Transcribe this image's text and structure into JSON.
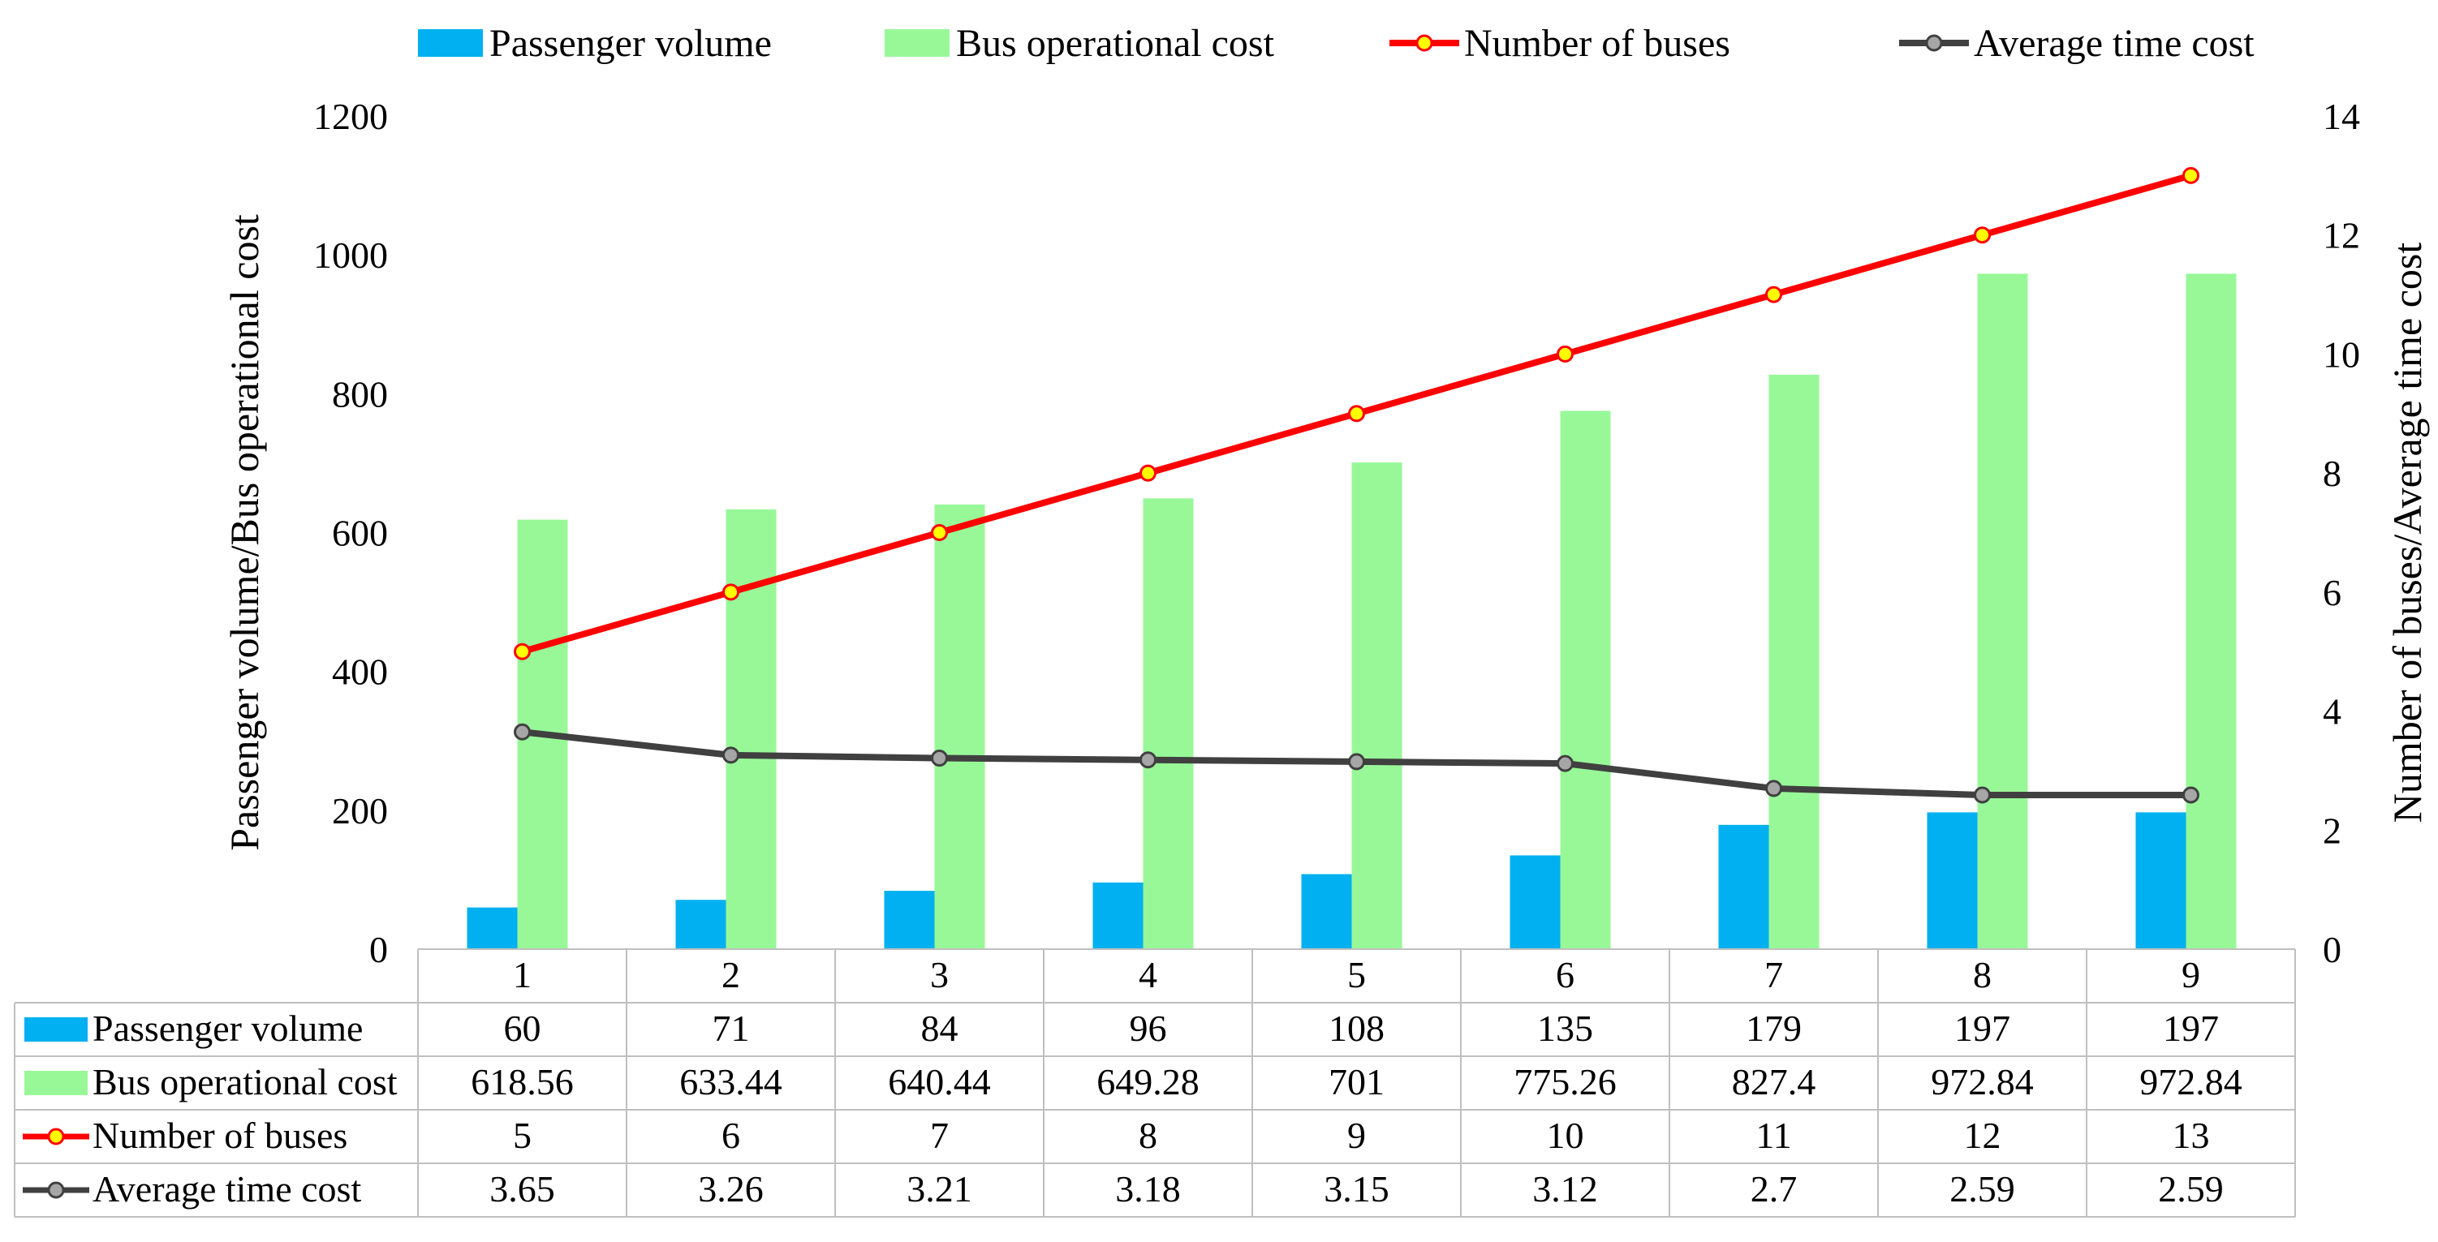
{
  "chart_data": {
    "type": "bar",
    "title": "",
    "xlabel": "",
    "ylabel_left": "Passenger volume/Bus operational cost",
    "ylabel_right": "Number of buses/Average time cost",
    "categories": [
      "1",
      "2",
      "3",
      "4",
      "5",
      "6",
      "7",
      "8",
      "9"
    ],
    "ylim_left": [
      0,
      1200
    ],
    "yticks_left": [
      "0",
      "200",
      "400",
      "600",
      "800",
      "1000",
      "1200"
    ],
    "ylim_right": [
      0,
      14
    ],
    "yticks_right": [
      "0",
      "2",
      "4",
      "6",
      "8",
      "10",
      "12",
      "14"
    ],
    "grid": false,
    "legend_position": "top",
    "series": [
      {
        "name": "Passenger volume",
        "kind": "bar",
        "axis": "left",
        "color": "#00B0F0",
        "values": [
          60,
          71,
          84,
          96,
          108,
          135,
          179,
          197,
          197
        ],
        "labels": [
          "60",
          "71",
          "84",
          "96",
          "108",
          "135",
          "179",
          "197",
          "197"
        ]
      },
      {
        "name": "Bus operational cost",
        "kind": "bar",
        "axis": "left",
        "color": "#98F898",
        "values": [
          618.56,
          633.44,
          640.44,
          649.28,
          701,
          775.26,
          827.4,
          972.84,
          972.84
        ],
        "labels": [
          "618.56",
          "633.44",
          "640.44",
          "649.28",
          "701",
          "775.26",
          "827.4",
          "972.84",
          "972.84"
        ]
      },
      {
        "name": "Number of buses",
        "kind": "line",
        "axis": "right",
        "color": "#FF0000",
        "marker_fill": "#FFFF00",
        "values": [
          5,
          6,
          7,
          8,
          9,
          10,
          11,
          12,
          13
        ],
        "labels": [
          "5",
          "6",
          "7",
          "8",
          "9",
          "10",
          "11",
          "12",
          "13"
        ]
      },
      {
        "name": "Average time cost",
        "kind": "line",
        "axis": "right",
        "color": "#404040",
        "marker_fill": "#A6A6A6",
        "values": [
          3.65,
          3.26,
          3.21,
          3.18,
          3.15,
          3.12,
          2.7,
          2.59,
          2.59
        ],
        "labels": [
          "3.65",
          "3.26",
          "3.21",
          "3.18",
          "3.15",
          "3.12",
          "2.7",
          "2.59",
          "2.59"
        ]
      }
    ]
  }
}
